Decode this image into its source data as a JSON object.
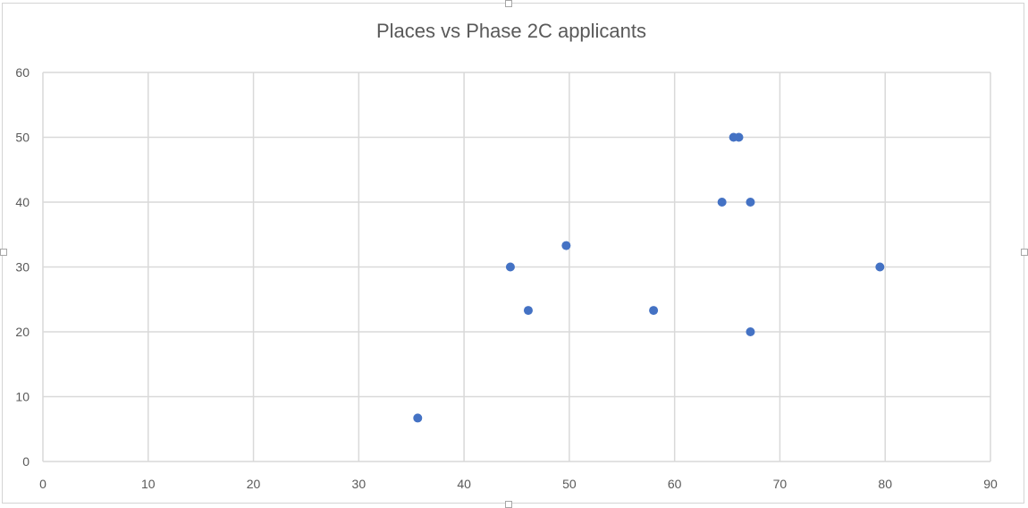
{
  "chart_data": {
    "type": "scatter",
    "title": "Places vs Phase 2C applicants",
    "xlabel": "",
    "ylabel": "",
    "xlim": [
      0,
      90
    ],
    "ylim": [
      0,
      60
    ],
    "xticks": [
      0,
      10,
      20,
      30,
      40,
      50,
      60,
      70,
      80,
      90
    ],
    "yticks": [
      0,
      10,
      20,
      30,
      40,
      50,
      60
    ],
    "grid": true,
    "legend": "none",
    "marker_color": "#4472c4",
    "series": [
      {
        "points": [
          {
            "x": 35.6,
            "y": 6.7
          },
          {
            "x": 44.4,
            "y": 30
          },
          {
            "x": 46.1,
            "y": 23.3
          },
          {
            "x": 49.7,
            "y": 33.3
          },
          {
            "x": 58.0,
            "y": 23.3
          },
          {
            "x": 64.5,
            "y": 40
          },
          {
            "x": 65.6,
            "y": 50
          },
          {
            "x": 66.1,
            "y": 50
          },
          {
            "x": 67.2,
            "y": 40
          },
          {
            "x": 67.2,
            "y": 20
          },
          {
            "x": 79.5,
            "y": 30
          }
        ]
      }
    ]
  }
}
